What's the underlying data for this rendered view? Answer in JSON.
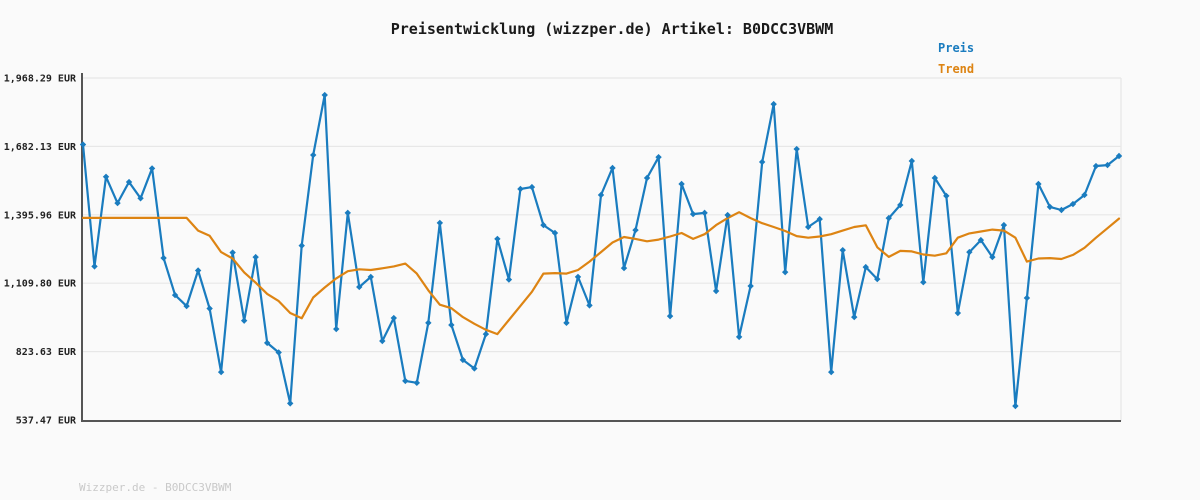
{
  "title": "Preisentwicklung (wizzper.de) Artikel: B0DCC3VBWM",
  "footer": "Wizzper.de - B0DCC3VBWM",
  "legend": {
    "items": [
      {
        "label": "Preis",
        "color": "#1a7cbf"
      },
      {
        "label": "Trend",
        "color": "#dd8413"
      }
    ]
  },
  "chart_data": {
    "type": "line",
    "title": "Preisentwicklung (wizzper.de) Artikel: B0DCC3VBWM",
    "xlabel": "",
    "ylabel": "EUR",
    "x_tick_labels_visible": false,
    "grid": "horizontal",
    "legend_position": "top-right",
    "background_color": "#fafafa",
    "grid_color": "#e7e7e7",
    "axis_color": "#555555",
    "ylim": [
      537.47,
      1968.29
    ],
    "yticks": [
      {
        "label": "1,968.29 EUR",
        "value": 1968.29
      },
      {
        "label": "1,682.13 EUR",
        "value": 1682.13
      },
      {
        "label": "1,395.96 EUR",
        "value": 1395.96
      },
      {
        "label": "1,109.80 EUR",
        "value": 1109.8
      },
      {
        "label": "823.63 EUR",
        "value": 823.63
      },
      {
        "label": "537.47 EUR",
        "value": 537.47
      }
    ],
    "series": [
      {
        "name": "Preis",
        "color": "#1a7cbf",
        "markers": true,
        "values": [
          1690,
          1180,
          1555,
          1445,
          1533,
          1465,
          1590,
          1215,
          1060,
          1014,
          1163,
          1004,
          738,
          1238,
          953,
          1219,
          860,
          820,
          607,
          1267,
          1646,
          1897,
          918,
          1404,
          1094,
          1136,
          868,
          964,
          701,
          693,
          944,
          1362,
          935,
          789,
          753,
          897,
          1295,
          1125,
          1504,
          1512,
          1353,
          1320,
          944,
          1136,
          1017,
          1479,
          1592,
          1173,
          1332,
          1550,
          1637,
          972,
          1525,
          1399,
          1404,
          1077,
          1395,
          885,
          1098,
          1617,
          1859,
          1156,
          1671,
          1345,
          1378,
          738,
          1248,
          968,
          1177,
          1127,
          1382,
          1437,
          1621,
          1114,
          1550,
          1475,
          985,
          1240,
          1290,
          1219,
          1353,
          596,
          1048,
          1525,
          1429,
          1416,
          1441,
          1479,
          1600,
          1604,
          1642
        ]
      },
      {
        "name": "Trend",
        "color": "#dd8413",
        "markers": false,
        "values": [
          1383,
          1383,
          1383,
          1383,
          1383,
          1383,
          1383,
          1383,
          1383,
          1383,
          1330,
          1308,
          1240,
          1213,
          1155,
          1112,
          1065,
          1035,
          985,
          963,
          1050,
          1092,
          1130,
          1160,
          1168,
          1165,
          1172,
          1180,
          1192,
          1150,
          1080,
          1020,
          1005,
          968,
          940,
          915,
          897,
          956,
          1015,
          1074,
          1150,
          1152,
          1150,
          1165,
          1200,
          1240,
          1280,
          1303,
          1295,
          1285,
          1292,
          1305,
          1320,
          1295,
          1315,
          1353,
          1382,
          1407,
          1382,
          1361,
          1345,
          1328,
          1307,
          1300,
          1305,
          1315,
          1330,
          1345,
          1352,
          1260,
          1220,
          1245,
          1243,
          1230,
          1225,
          1235,
          1300,
          1318,
          1326,
          1334,
          1330,
          1300,
          1200,
          1213,
          1215,
          1211,
          1228,
          1258,
          1300,
          1340,
          1380
        ]
      }
    ]
  }
}
